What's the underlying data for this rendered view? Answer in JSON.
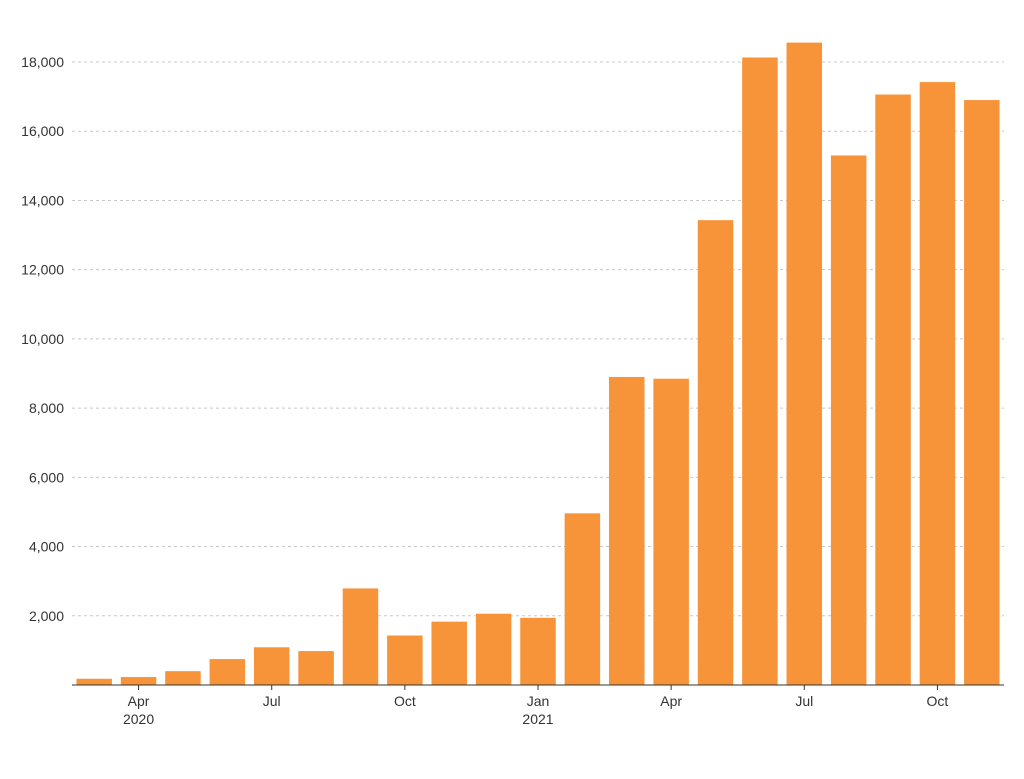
{
  "chart_data": {
    "type": "bar",
    "title": "",
    "xlabel": "",
    "ylabel": "",
    "ylim": [
      0,
      18000
    ],
    "y_ticks": [
      "2,000",
      "4,000",
      "6,000",
      "8,000",
      "10,000",
      "12,000",
      "14,000",
      "16,000",
      "18,000"
    ],
    "y_tick_values": [
      2000,
      4000,
      6000,
      8000,
      10000,
      12000,
      14000,
      16000,
      18000
    ],
    "grid": "horizontal dashed",
    "bar_color": "#f7943a",
    "categories": [
      "2020-03",
      "2020-04",
      "2020-05",
      "2020-06",
      "2020-07",
      "2020-08",
      "2020-09",
      "2020-10",
      "2020-11",
      "2020-12",
      "2021-01",
      "2021-02",
      "2021-03",
      "2021-04",
      "2021-05",
      "2021-06",
      "2021-07",
      "2021-08",
      "2021-09",
      "2021-10",
      "2021-11"
    ],
    "values": [
      180,
      230,
      400,
      750,
      1090,
      980,
      2790,
      1430,
      1830,
      2060,
      1940,
      4960,
      8900,
      8850,
      13430,
      18130,
      18560,
      15300,
      17060,
      17420,
      16900
    ],
    "x_tick_labels": [
      {
        "category": "2020-04",
        "label": "Apr",
        "year": "2020"
      },
      {
        "category": "2020-07",
        "label": "Jul",
        "year": ""
      },
      {
        "category": "2020-10",
        "label": "Oct",
        "year": ""
      },
      {
        "category": "2021-01",
        "label": "Jan",
        "year": "2021"
      },
      {
        "category": "2021-04",
        "label": "Apr",
        "year": ""
      },
      {
        "category": "2021-07",
        "label": "Jul",
        "year": ""
      },
      {
        "category": "2021-10",
        "label": "Oct",
        "year": ""
      }
    ]
  }
}
